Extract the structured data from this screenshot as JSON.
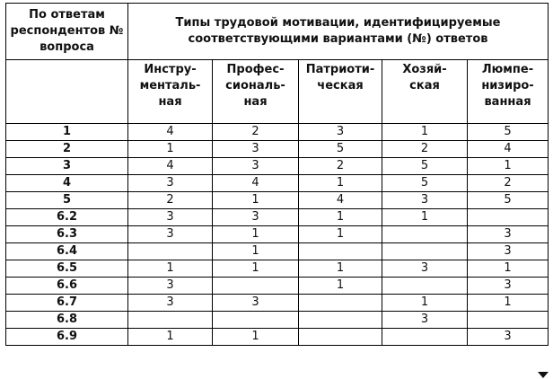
{
  "header": {
    "row_label": "По ответам респондентов № вопроса",
    "group_label": "Типы трудовой мотивации, идентифицируемые соответствующими вариантами (№) ответов",
    "columns": [
      "Инстру-\nменталь-\nная",
      "Профес-\nсиональ-\nная",
      "Патриоти-\nческая",
      "Хозяй-\nская",
      "Люмпе-\nнизиро-\nванная"
    ]
  },
  "rows": [
    {
      "q": "1",
      "v": [
        "4",
        "2",
        "3",
        "1",
        "5"
      ]
    },
    {
      "q": "2",
      "v": [
        "1",
        "3",
        "5",
        "2",
        "4"
      ]
    },
    {
      "q": "3",
      "v": [
        "4",
        "3",
        "2",
        "5",
        "1"
      ]
    },
    {
      "q": "4",
      "v": [
        "3",
        "4",
        "1",
        "5",
        "2"
      ]
    },
    {
      "q": "5",
      "v": [
        "2",
        "1",
        "4",
        "3",
        "5"
      ]
    },
    {
      "q": "6.2",
      "v": [
        "3",
        "3",
        "1",
        "1",
        ""
      ]
    },
    {
      "q": "6.3",
      "v": [
        "3",
        "1",
        "1",
        "",
        "3"
      ]
    },
    {
      "q": "6.4",
      "v": [
        "",
        "1",
        "",
        "",
        "3"
      ]
    },
    {
      "q": "6.5",
      "v": [
        "1",
        "1",
        "1",
        "3",
        "1"
      ]
    },
    {
      "q": "6.6",
      "v": [
        "3",
        "",
        "1",
        "",
        "3"
      ]
    },
    {
      "q": "6.7",
      "v": [
        "3",
        "3",
        "",
        "1",
        "1"
      ]
    },
    {
      "q": "6.8",
      "v": [
        "",
        "",
        "",
        "3",
        ""
      ]
    },
    {
      "q": "6.9",
      "v": [
        "1",
        "1",
        "",
        "",
        "3"
      ]
    }
  ],
  "icons": {
    "scroll": "triangle-down-icon"
  }
}
